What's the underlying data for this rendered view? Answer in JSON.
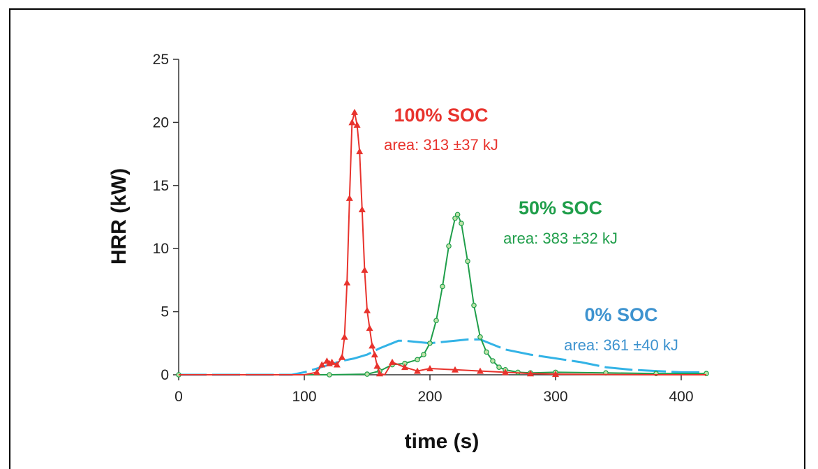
{
  "chart_data": {
    "type": "line",
    "title": "",
    "xlabel": "time (s)",
    "ylabel": "HRR (kW)",
    "xlim": [
      0,
      420
    ],
    "ylim": [
      0,
      25
    ],
    "xticks": [
      "0",
      "100",
      "200",
      "300",
      "400"
    ],
    "yticks": [
      "0",
      "5",
      "10",
      "15",
      "20",
      "25"
    ],
    "grid": false,
    "annotations": [
      {
        "series": "100% SOC",
        "title": "100% SOC",
        "subtitle": "area: 313 ±37 kJ",
        "color": "#e8332d"
      },
      {
        "series": "50% SOC",
        "title": "50% SOC",
        "subtitle": "area: 383 ±32 kJ",
        "color": "#1f9e4a"
      },
      {
        "series": "0% SOC",
        "title": "0% SOC",
        "subtitle": "area: 361 ±40 kJ",
        "color": "#3e93cf"
      }
    ],
    "series": [
      {
        "name": "100% SOC",
        "color": "#e8332d",
        "marker": "triangle",
        "x": [
          0,
          100,
          110,
          114,
          118,
          120,
          122,
          126,
          130,
          132,
          134,
          136,
          138,
          140,
          142,
          144,
          146,
          148,
          150,
          152,
          154,
          156,
          158,
          160,
          164,
          170,
          180,
          190,
          200,
          220,
          240,
          260,
          280,
          300,
          340,
          380,
          420
        ],
        "y": [
          0,
          0,
          0.2,
          0.8,
          1.1,
          0.9,
          1.0,
          0.8,
          1.4,
          3.0,
          7.3,
          14.0,
          20.0,
          20.8,
          19.8,
          17.7,
          13.1,
          8.3,
          5.1,
          3.7,
          2.3,
          1.6,
          0.7,
          0.1,
          0.0,
          1.0,
          0.6,
          0.3,
          0.5,
          0.4,
          0.3,
          0.2,
          0.1,
          0.05,
          0.02,
          0.0,
          0.0
        ]
      },
      {
        "name": "50% SOC",
        "color": "#1f9e4a",
        "marker": "circle",
        "x": [
          0,
          120,
          150,
          160,
          170,
          180,
          190,
          195,
          200,
          205,
          210,
          215,
          220,
          222,
          225,
          230,
          235,
          240,
          245,
          250,
          255,
          260,
          270,
          280,
          300,
          340,
          380,
          420
        ],
        "y": [
          0,
          0,
          0.05,
          0.3,
          0.8,
          0.9,
          1.2,
          1.6,
          2.5,
          4.3,
          7.0,
          10.2,
          12.4,
          12.7,
          12.0,
          9.0,
          5.5,
          3.0,
          1.8,
          1.1,
          0.6,
          0.4,
          0.2,
          0.15,
          0.2,
          0.15,
          0.1,
          0.1
        ]
      },
      {
        "name": "0% SOC",
        "color": "#33b3e6",
        "marker": "none",
        "x": [
          0,
          90,
          100,
          110,
          120,
          130,
          140,
          150,
          160,
          170,
          175,
          180,
          190,
          200,
          210,
          220,
          230,
          240,
          250,
          260,
          280,
          300,
          320,
          340,
          360,
          380,
          400,
          420
        ],
        "y": [
          0,
          0,
          0.2,
          0.5,
          0.8,
          1.1,
          1.3,
          1.6,
          2.1,
          2.5,
          2.7,
          2.7,
          2.6,
          2.5,
          2.6,
          2.7,
          2.8,
          2.8,
          2.4,
          2.0,
          1.6,
          1.3,
          1.0,
          0.6,
          0.4,
          0.3,
          0.2,
          0.2
        ]
      }
    ]
  }
}
